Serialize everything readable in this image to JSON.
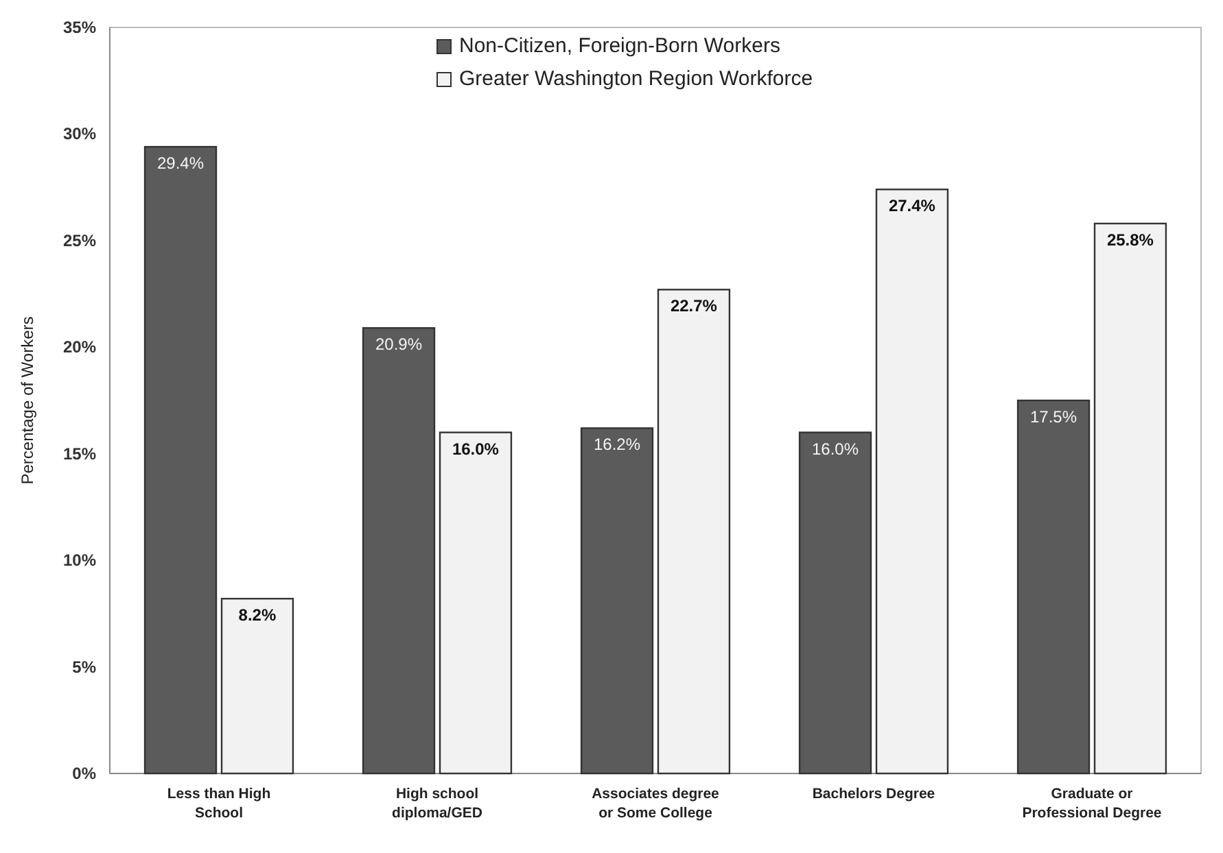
{
  "chart_data": {
    "type": "bar",
    "ylabel": "Percentage of Workers",
    "categories": [
      "Less than High School",
      "High school diploma/GED",
      "Associates degree or Some College",
      "Bachelors Degree",
      "Graduate or Professional Degree"
    ],
    "series": [
      {
        "name": "Non-Citizen, Foreign-Born Workers",
        "color": "#5b5b5b",
        "values": [
          29.4,
          20.9,
          16.2,
          16.0,
          17.5
        ],
        "value_labels": [
          "29.4%",
          "20.9%",
          "16.2%",
          "16.0%",
          "17.5%"
        ]
      },
      {
        "name": "Greater Washington Region Workforce",
        "color": "#f2f2f2",
        "values": [
          8.2,
          16.0,
          22.7,
          27.4,
          25.8
        ],
        "value_labels": [
          "8.2%",
          "16.0%",
          "22.7%",
          "27.4%",
          "25.8%"
        ]
      }
    ],
    "ylim": [
      0,
      35
    ],
    "yticks": [
      {
        "value": 0,
        "label": "0%"
      },
      {
        "value": 5,
        "label": "5%"
      },
      {
        "value": 10,
        "label": "10%"
      },
      {
        "value": 15,
        "label": "15%"
      },
      {
        "value": 20,
        "label": "20%"
      },
      {
        "value": 25,
        "label": "25%"
      },
      {
        "value": 30,
        "label": "30%"
      },
      {
        "value": 35,
        "label": "35%"
      }
    ],
    "legend": "top",
    "grid": false
  }
}
